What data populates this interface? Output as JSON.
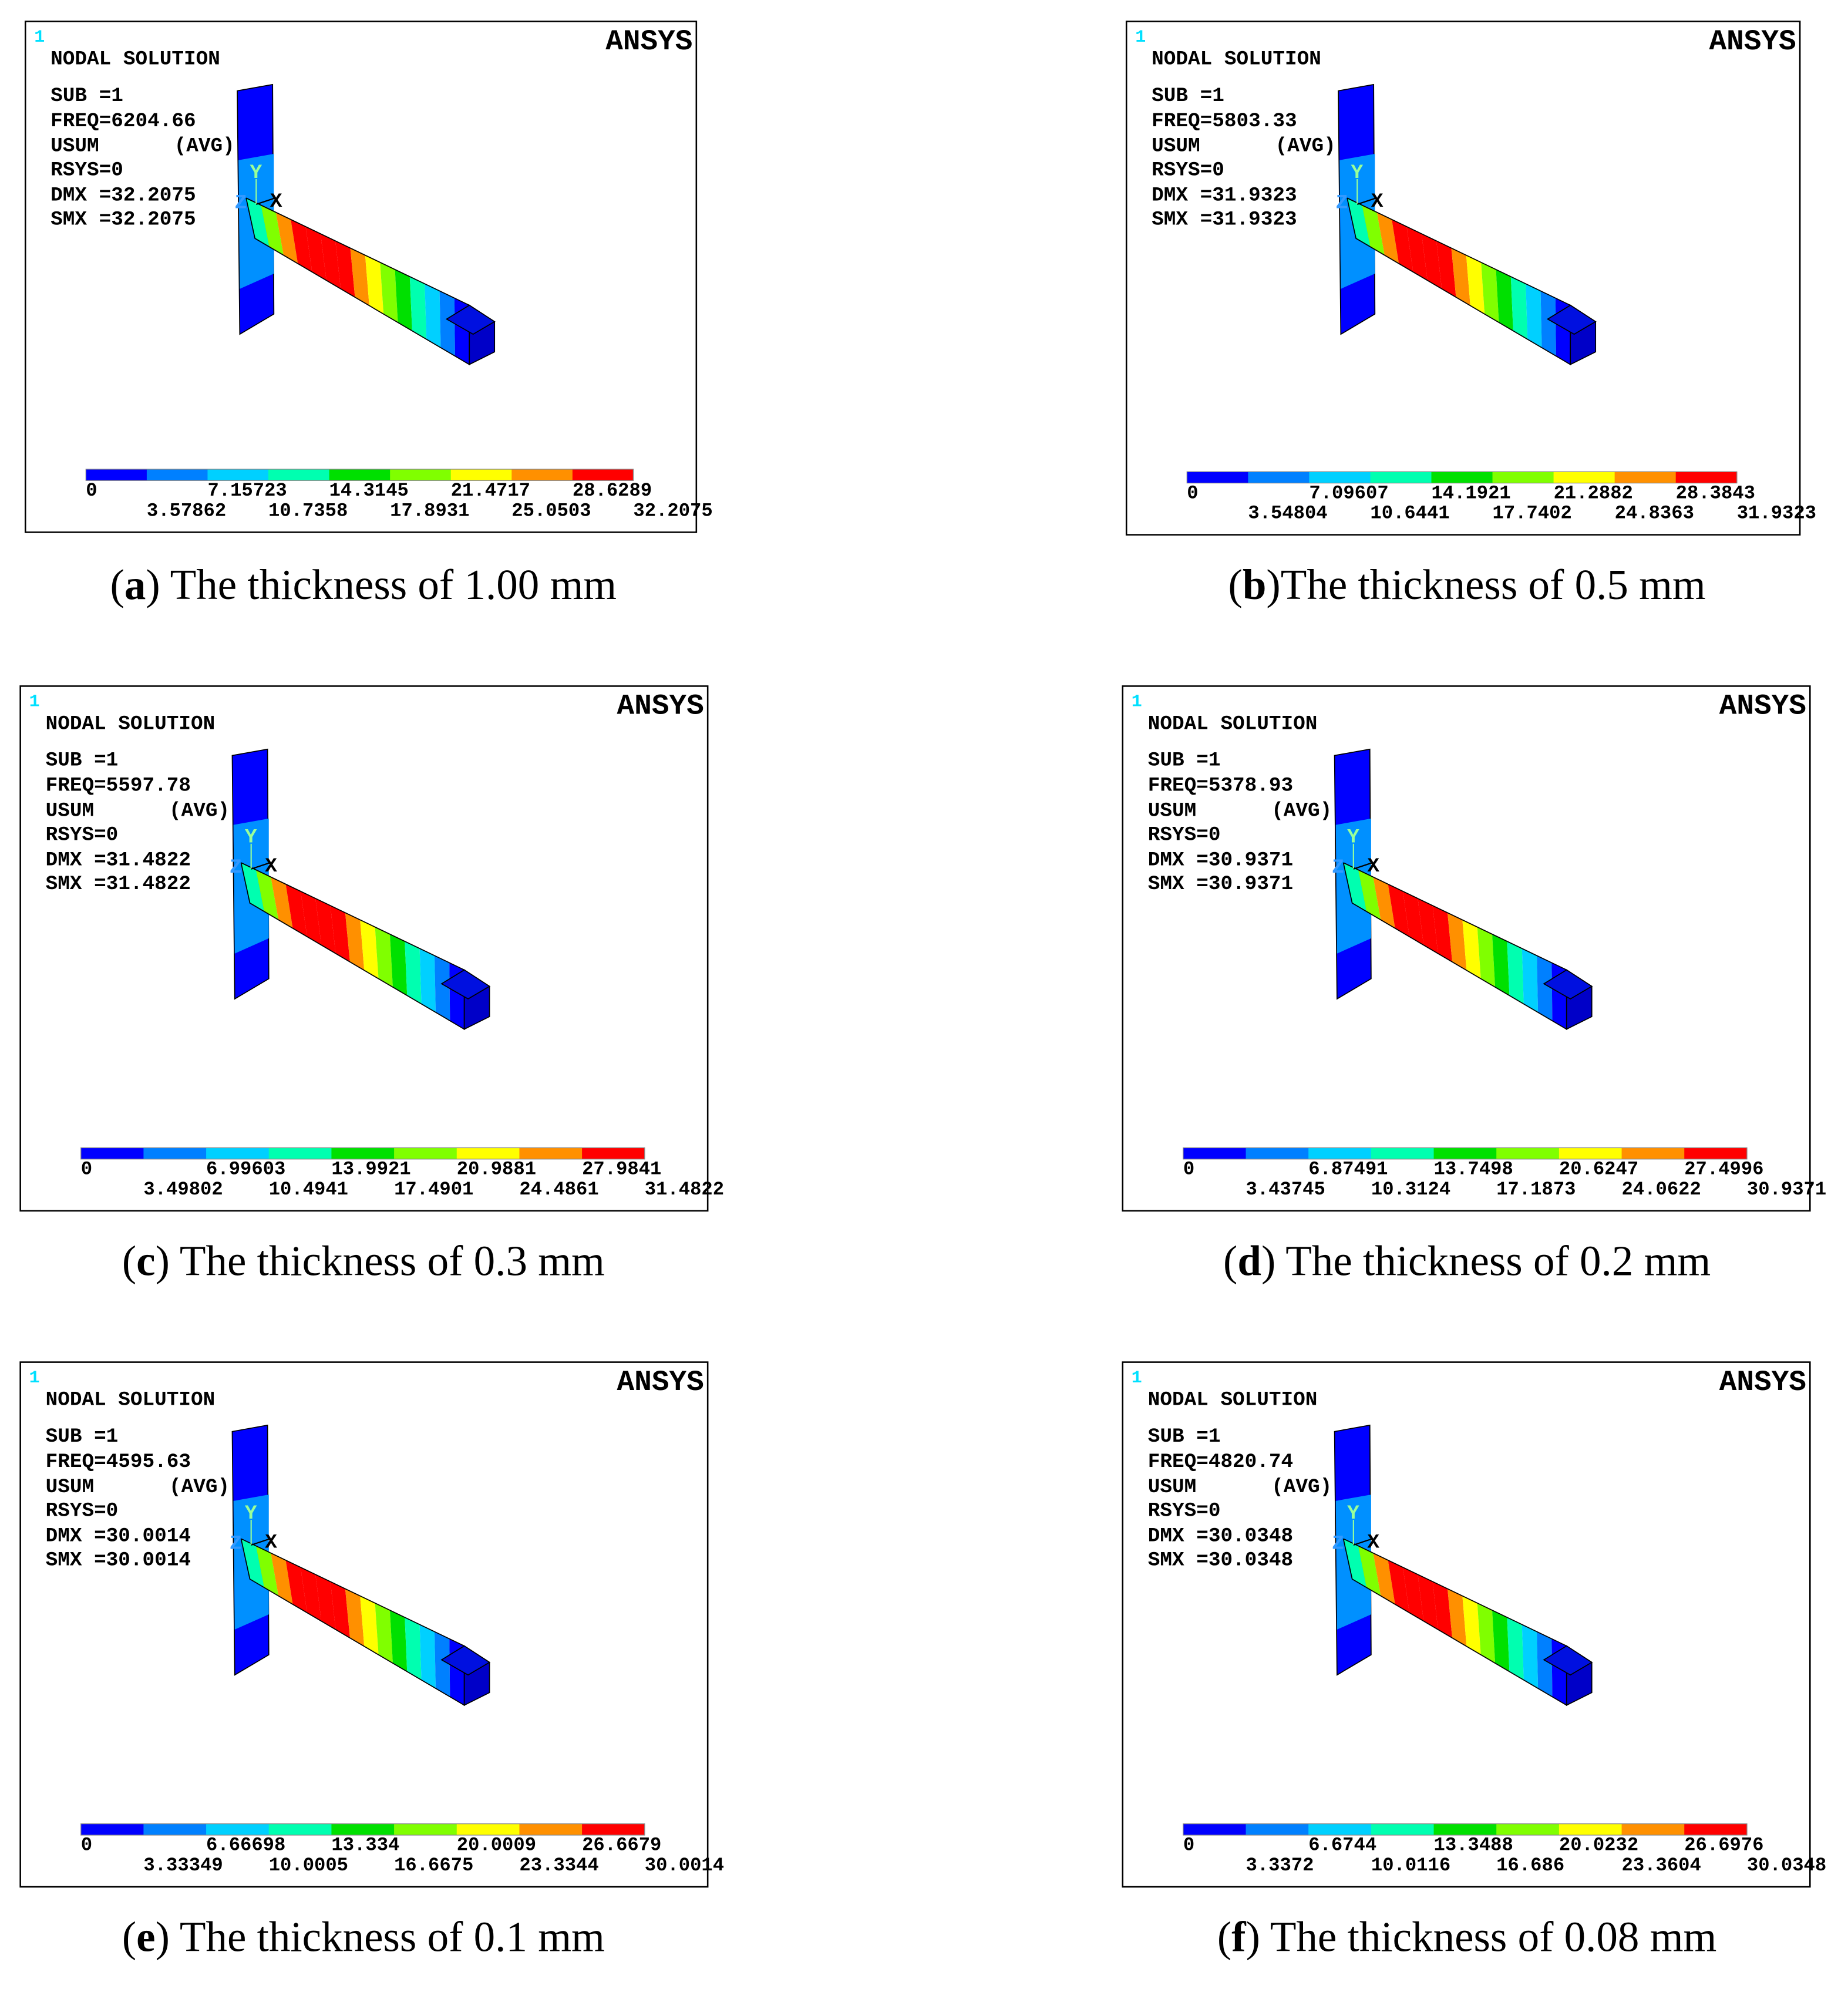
{
  "legend_colors": [
    "#0000ff",
    "#0080ff",
    "#00d0ff",
    "#00ffb0",
    "#00e000",
    "#80ff00",
    "#ffff00",
    "#ff9000",
    "#ff0000"
  ],
  "panels": [
    {
      "marker": "1",
      "header": "NODAL SOLUTION",
      "brand": "ANSYS",
      "info": [
        "SUB =1",
        "FREQ=6204.66",
        "USUM",
        "(AVG)",
        "RSYS=0",
        "DMX =32.2075",
        "SMX =32.2075"
      ],
      "axes": [
        "Y",
        "X",
        "Z"
      ],
      "legend": [
        "0",
        "3.57862",
        "7.15723",
        "10.7358",
        "14.3145",
        "17.8931",
        "21.4717",
        "25.0503",
        "28.6289",
        "32.2075"
      ],
      "caption": [
        "(",
        "a",
        ") The thickness of 1.00 mm"
      ]
    },
    {
      "marker": "1",
      "header": "NODAL SOLUTION",
      "brand": "ANSYS",
      "info": [
        "SUB =1",
        "FREQ=5803.33",
        "USUM",
        "(AVG)",
        "RSYS=0",
        "DMX =31.9323",
        "SMX =31.9323"
      ],
      "axes": [
        "Y",
        "X",
        "Z"
      ],
      "legend": [
        "0",
        "3.54804",
        "7.09607",
        "10.6441",
        "14.1921",
        "17.7402",
        "21.2882",
        "24.8363",
        "28.3843",
        "31.9323"
      ],
      "caption": [
        "(",
        "b",
        ")The thickness of 0.5 mm"
      ]
    },
    {
      "marker": "1",
      "header": "NODAL SOLUTION",
      "brand": "ANSYS",
      "info": [
        "SUB =1",
        "FREQ=5597.78",
        "USUM",
        "(AVG)",
        "RSYS=0",
        "DMX =31.4822",
        "SMX =31.4822"
      ],
      "axes": [
        "Y",
        "X",
        "Z"
      ],
      "legend": [
        "0",
        "3.49802",
        "6.99603",
        "10.4941",
        "13.9921",
        "17.4901",
        "20.9881",
        "24.4861",
        "27.9841",
        "31.4822"
      ],
      "caption": [
        "(",
        "c",
        ") The thickness of 0.3 mm"
      ]
    },
    {
      "marker": "1",
      "header": "NODAL SOLUTION",
      "brand": "ANSYS",
      "info": [
        "SUB =1",
        "FREQ=5378.93",
        "USUM",
        "(AVG)",
        "RSYS=0",
        "DMX =30.9371",
        "SMX =30.9371"
      ],
      "axes": [
        "Y",
        "X",
        "Z"
      ],
      "legend": [
        "0",
        "3.43745",
        "6.87491",
        "10.3124",
        "13.7498",
        "17.1873",
        "20.6247",
        "24.0622",
        "27.4996",
        "30.9371"
      ],
      "caption": [
        "(",
        "d",
        ") The thickness of 0.2 mm"
      ]
    },
    {
      "marker": "1",
      "header": "NODAL SOLUTION",
      "brand": "ANSYS",
      "info": [
        "SUB =1",
        "FREQ=4595.63",
        "USUM",
        "(AVG)",
        "RSYS=0",
        "DMX =30.0014",
        "SMX =30.0014"
      ],
      "axes": [
        "Y",
        "X",
        "Z"
      ],
      "legend": [
        "0",
        "3.33349",
        "6.66698",
        "10.0005",
        "13.334",
        "16.6675",
        "20.0009",
        "23.3344",
        "26.6679",
        "30.0014"
      ],
      "caption": [
        "(",
        "e",
        ") The thickness of 0.1 mm"
      ]
    },
    {
      "marker": "1",
      "header": "NODAL SOLUTION",
      "brand": "ANSYS",
      "info": [
        "SUB =1",
        "FREQ=4820.74",
        "USUM",
        "(AVG)",
        "RSYS=0",
        "DMX =30.0348",
        "SMX =30.0348"
      ],
      "axes": [
        "Y",
        "X",
        "Z"
      ],
      "legend": [
        "0",
        "3.3372",
        "6.6744",
        "10.0116",
        "13.3488",
        "16.686",
        "20.0232",
        "23.3604",
        "26.6976",
        "30.0348"
      ],
      "caption": [
        "(",
        "f",
        ") The thickness of 0.08 mm"
      ]
    }
  ]
}
